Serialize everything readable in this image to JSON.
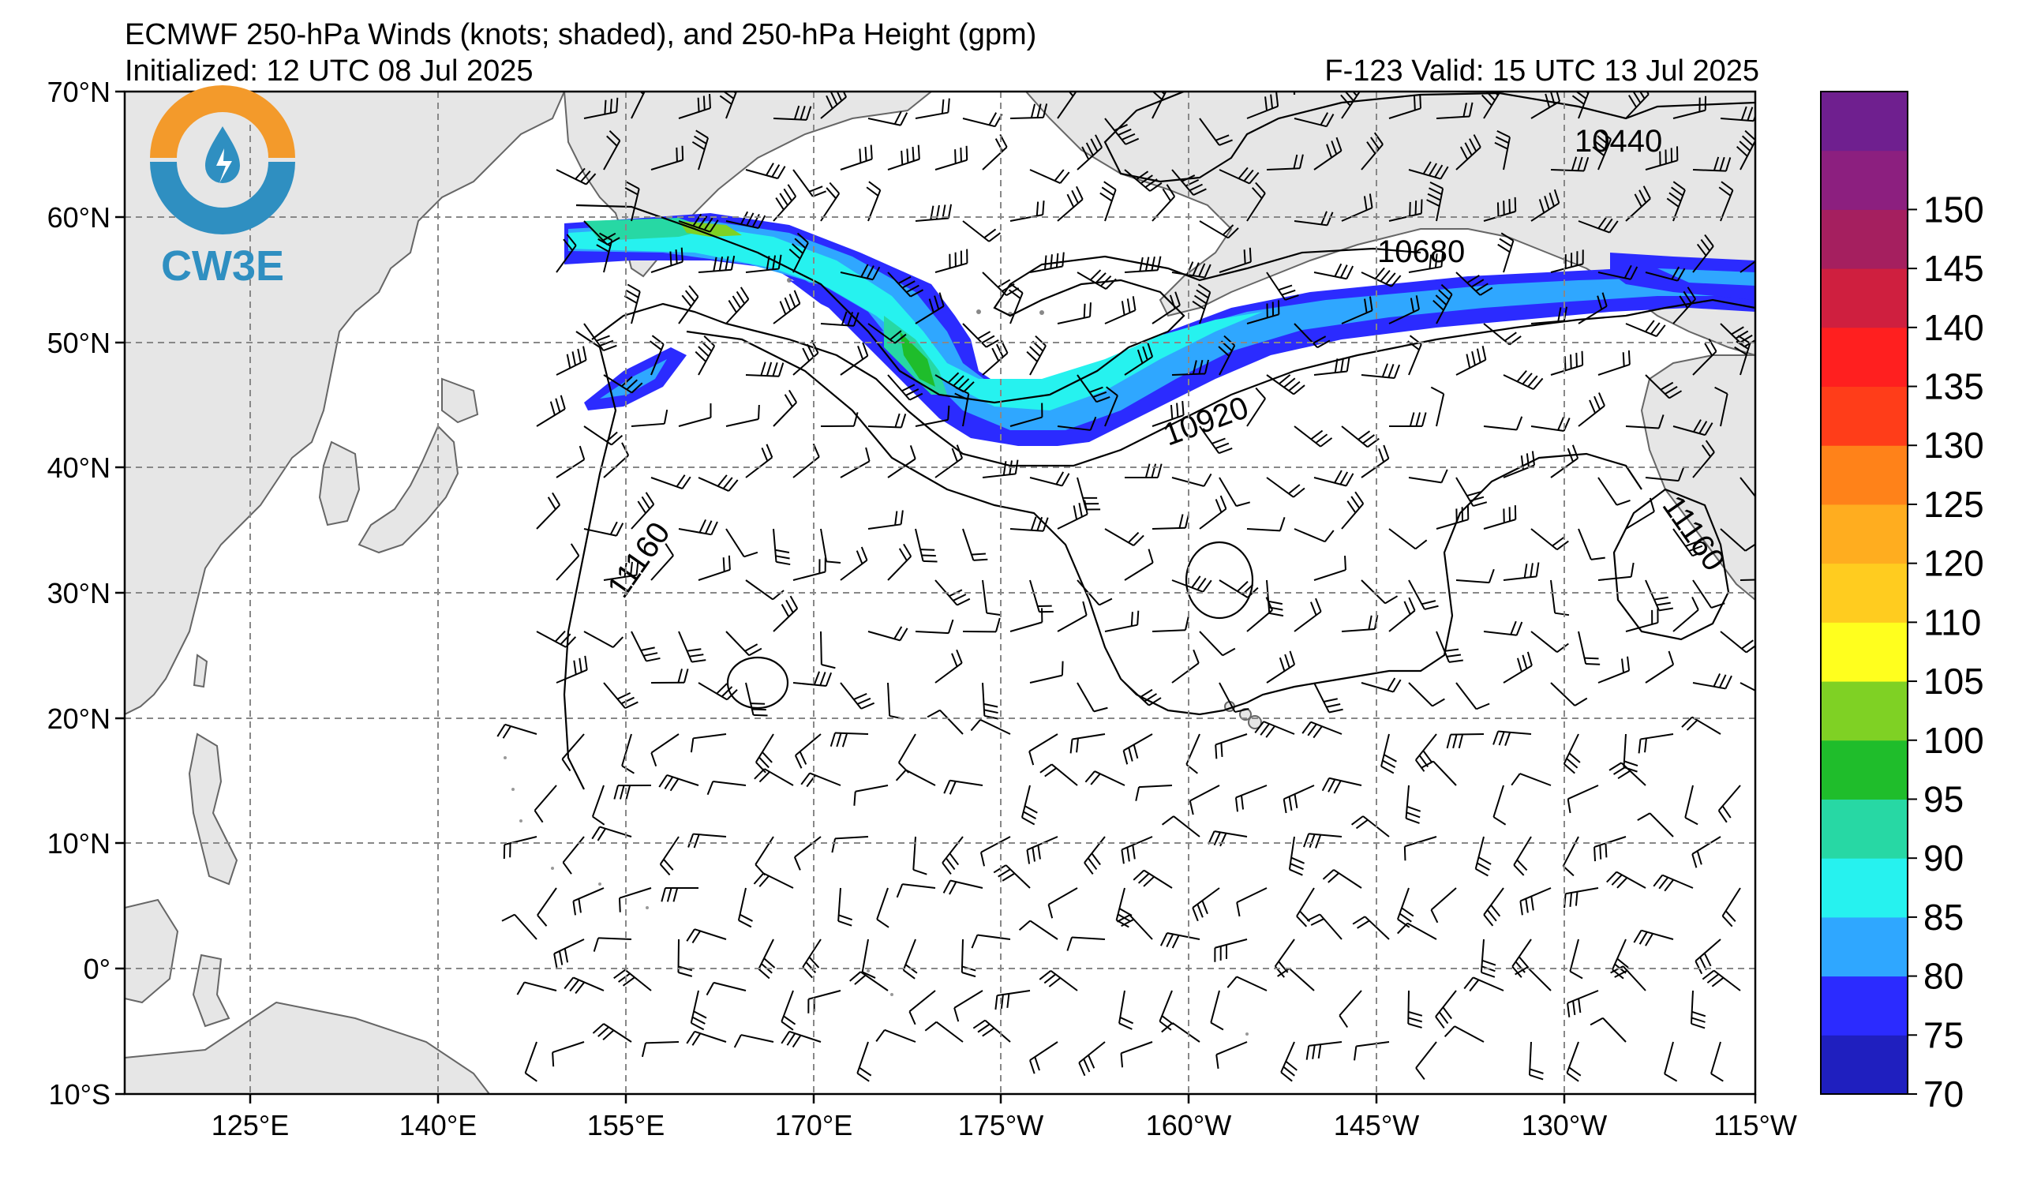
{
  "header": {
    "title": "ECMWF 250-hPa Winds (knots; shaded), and 250-hPa Height (gpm)",
    "initialized": "Initialized: 12 UTC 08 Jul 2025",
    "valid": "F-123  Valid: 15 UTC 13 Jul 2025"
  },
  "logo": {
    "text": "CW3E",
    "colors": {
      "orange": "#f39a2b",
      "blue": "#2f8fc1"
    }
  },
  "map": {
    "lat_ticks": [
      "70°N",
      "60°N",
      "50°N",
      "40°N",
      "30°N",
      "20°N",
      "10°N",
      "0°",
      "10°S"
    ],
    "lon_ticks": [
      "125°E",
      "140°E",
      "155°E",
      "170°E",
      "175°W",
      "160°W",
      "145°W",
      "130°W",
      "115°W"
    ],
    "contour_labels": [
      "10440",
      "10680",
      "10920",
      "11160",
      "11160"
    ],
    "land_color": "#e6e6e6",
    "grid": "dashed"
  },
  "colorbar": {
    "ticks": [
      "70",
      "75",
      "80",
      "85",
      "90",
      "95",
      "100",
      "105",
      "110",
      "120",
      "125",
      "130",
      "135",
      "140",
      "145",
      "150"
    ],
    "colors": [
      "#1f1fbf",
      "#2b2bff",
      "#2fa7ff",
      "#26f2ef",
      "#27d8a4",
      "#1fbd2b",
      "#7fd124",
      "#ffff1e",
      "#ffcc1f",
      "#ffad1f",
      "#ff8219",
      "#ff3d19",
      "#ff1f1f",
      "#cf1f3f",
      "#a51f5f",
      "#8c1f7f",
      "#6f1f8f"
    ]
  }
}
